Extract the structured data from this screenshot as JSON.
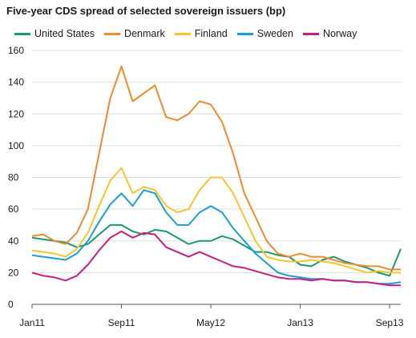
{
  "chart_data": {
    "type": "line",
    "title": "Five-year CDS spread of selected sovereign issuers (bp)",
    "xlabel": "",
    "ylabel": "",
    "ylim": [
      0,
      160
    ],
    "yticks": [
      0,
      20,
      40,
      60,
      80,
      100,
      120,
      140,
      160
    ],
    "xlim": [
      "2011-01",
      "2013-10"
    ],
    "xticks": [
      {
        "label": "Jan11",
        "x": "2011-01"
      },
      {
        "label": "Sep11",
        "x": "2011-09"
      },
      {
        "label": "May12",
        "x": "2012-05"
      },
      {
        "label": "Jan13",
        "x": "2013-01"
      },
      {
        "label": "Sep13",
        "x": "2013-09"
      }
    ],
    "grid": "horizontal",
    "legend_position": "top",
    "series": [
      {
        "name": "United States",
        "color": "#1a9a6c",
        "x": [
          "2011-01",
          "2011-02",
          "2011-03",
          "2011-04",
          "2011-05",
          "2011-06",
          "2011-07",
          "2011-08",
          "2011-09",
          "2011-10",
          "2011-11",
          "2011-12",
          "2012-01",
          "2012-02",
          "2012-03",
          "2012-04",
          "2012-05",
          "2012-06",
          "2012-07",
          "2012-08",
          "2012-09",
          "2012-10",
          "2012-11",
          "2012-12",
          "2013-01",
          "2013-02",
          "2013-03",
          "2013-04",
          "2013-05",
          "2013-06",
          "2013-07",
          "2013-08",
          "2013-09",
          "2013-10"
        ],
        "values": [
          42,
          41,
          40,
          39,
          36,
          38,
          44,
          50,
          50,
          46,
          44,
          47,
          46,
          42,
          38,
          40,
          40,
          43,
          41,
          37,
          33,
          33,
          31,
          30,
          25,
          24,
          28,
          30,
          27,
          25,
          23,
          20,
          18,
          35
        ]
      },
      {
        "name": "Denmark",
        "color": "#f08a2c",
        "x": [
          "2011-01",
          "2011-02",
          "2011-03",
          "2011-04",
          "2011-05",
          "2011-06",
          "2011-07",
          "2011-08",
          "2011-09",
          "2011-10",
          "2011-11",
          "2011-12",
          "2012-01",
          "2012-02",
          "2012-03",
          "2012-04",
          "2012-05",
          "2012-06",
          "2012-07",
          "2012-08",
          "2012-09",
          "2012-10",
          "2012-11",
          "2012-12",
          "2013-01",
          "2013-02",
          "2013-03",
          "2013-04",
          "2013-05",
          "2013-06",
          "2013-07",
          "2013-08",
          "2013-09",
          "2013-10"
        ],
        "values": [
          43,
          44,
          40,
          38,
          45,
          60,
          95,
          130,
          150,
          128,
          133,
          138,
          118,
          116,
          120,
          128,
          126,
          115,
          95,
          70,
          55,
          40,
          32,
          30,
          32,
          30,
          30,
          28,
          26,
          25,
          24,
          24,
          22,
          22
        ]
      },
      {
        "name": "Finland",
        "color": "#f7c42e",
        "x": [
          "2011-01",
          "2011-02",
          "2011-03",
          "2011-04",
          "2011-05",
          "2011-06",
          "2011-07",
          "2011-08",
          "2011-09",
          "2011-10",
          "2011-11",
          "2011-12",
          "2012-01",
          "2012-02",
          "2012-03",
          "2012-04",
          "2012-05",
          "2012-06",
          "2012-07",
          "2012-08",
          "2012-09",
          "2012-10",
          "2012-11",
          "2012-12",
          "2013-01",
          "2013-02",
          "2013-03",
          "2013-04",
          "2013-05",
          "2013-06",
          "2013-07",
          "2013-08",
          "2013-09",
          "2013-10"
        ],
        "values": [
          34,
          33,
          32,
          30,
          35,
          45,
          62,
          78,
          86,
          70,
          74,
          72,
          62,
          58,
          60,
          72,
          80,
          80,
          70,
          55,
          40,
          30,
          28,
          27,
          27,
          28,
          27,
          26,
          24,
          22,
          20,
          21,
          20,
          20
        ]
      },
      {
        "name": "Sweden",
        "color": "#199ed7",
        "x": [
          "2011-01",
          "2011-02",
          "2011-03",
          "2011-04",
          "2011-05",
          "2011-06",
          "2011-07",
          "2011-08",
          "2011-09",
          "2011-10",
          "2011-11",
          "2011-12",
          "2012-01",
          "2012-02",
          "2012-03",
          "2012-04",
          "2012-05",
          "2012-06",
          "2012-07",
          "2012-08",
          "2012-09",
          "2012-10",
          "2012-11",
          "2012-12",
          "2013-01",
          "2013-02",
          "2013-03",
          "2013-04",
          "2013-05",
          "2013-06",
          "2013-07",
          "2013-08",
          "2013-09",
          "2013-10"
        ],
        "values": [
          31,
          30,
          29,
          28,
          32,
          40,
          52,
          63,
          70,
          62,
          72,
          70,
          58,
          50,
          50,
          58,
          62,
          58,
          48,
          40,
          32,
          26,
          20,
          18,
          17,
          16,
          16,
          15,
          15,
          14,
          14,
          13,
          13,
          14
        ]
      },
      {
        "name": "Norway",
        "color": "#c81e82",
        "x": [
          "2011-01",
          "2011-02",
          "2011-03",
          "2011-04",
          "2011-05",
          "2011-06",
          "2011-07",
          "2011-08",
          "2011-09",
          "2011-10",
          "2011-11",
          "2011-12",
          "2012-01",
          "2012-02",
          "2012-03",
          "2012-04",
          "2012-05",
          "2012-06",
          "2012-07",
          "2012-08",
          "2012-09",
          "2012-10",
          "2012-11",
          "2012-12",
          "2013-01",
          "2013-02",
          "2013-03",
          "2013-04",
          "2013-05",
          "2013-06",
          "2013-07",
          "2013-08",
          "2013-09",
          "2013-10"
        ],
        "values": [
          20,
          18,
          17,
          15,
          18,
          25,
          34,
          42,
          46,
          42,
          45,
          44,
          36,
          33,
          30,
          33,
          30,
          27,
          24,
          23,
          21,
          19,
          17,
          16,
          16,
          15,
          16,
          15,
          15,
          14,
          14,
          13,
          12,
          12
        ]
      }
    ]
  }
}
